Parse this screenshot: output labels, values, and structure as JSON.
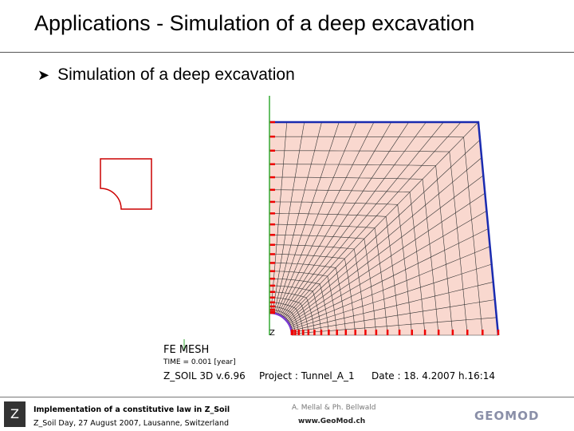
{
  "header": {
    "title": "Applications - Simulation of a deep excavation"
  },
  "bullet": "Simulation of a deep excavation",
  "figure": {
    "label": "FE MESH",
    "time": "TIME = 0.001 [year]",
    "software": "Z_SOIL 3D v.6.96",
    "project": "Project : Tunnel_A_1",
    "date": "Date : 18. 4.2007  h.16:14"
  },
  "footer": {
    "left_line1": "Implementation of a constitutive law in Z_Soil",
    "left_line2": "Z_Soil Day, 27 August 2007, Lausanne, Switzerland",
    "authors": "A. Mellal & Ph. Bellwald",
    "url": "www.GeoMod.ch",
    "logo": "GEOMOD"
  }
}
